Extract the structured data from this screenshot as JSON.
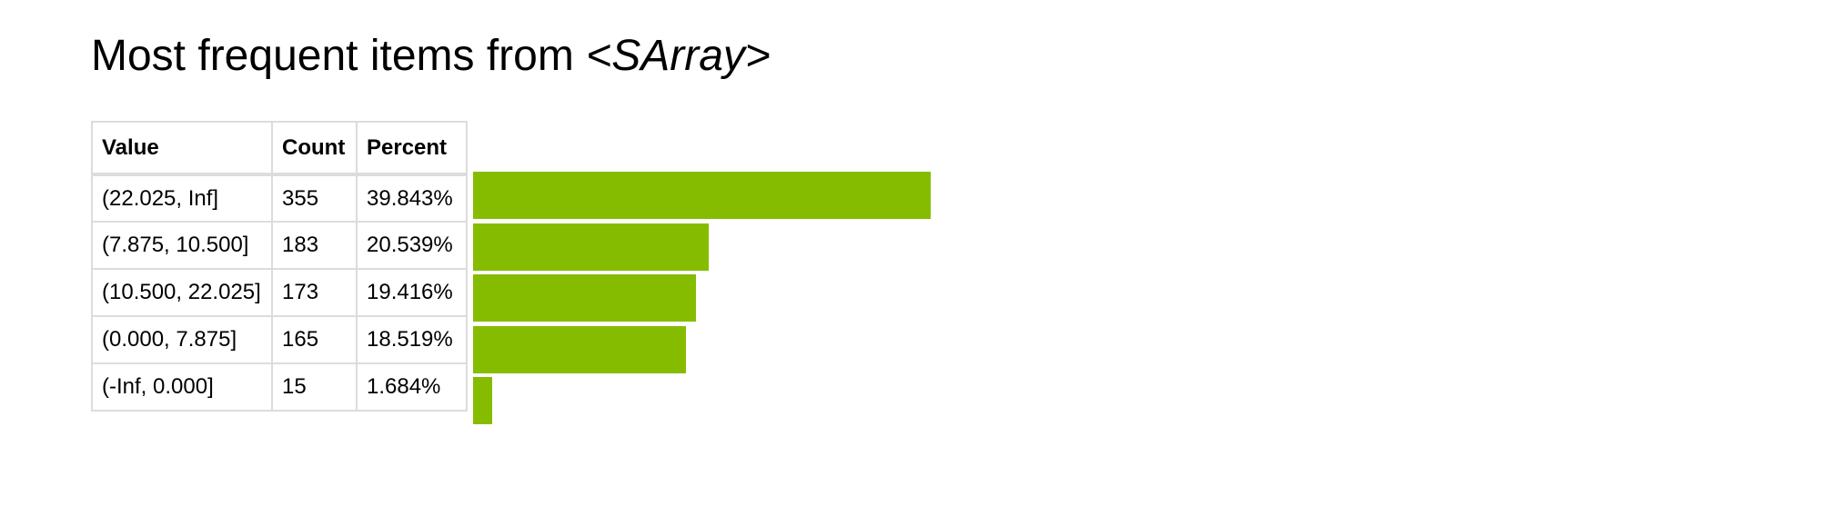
{
  "title": {
    "prefix": "Most frequent items from ",
    "object": "<SArray>"
  },
  "table": {
    "headers": [
      "Value",
      "Count",
      "Percent"
    ],
    "rows": [
      {
        "value": "(22.025, Inf]",
        "count": "355",
        "percent": "39.843%"
      },
      {
        "value": "(7.875, 10.500]",
        "count": "183",
        "percent": "20.539%"
      },
      {
        "value": "(10.500, 22.025]",
        "count": "173",
        "percent": "19.416%"
      },
      {
        "value": "(0.000, 7.875]",
        "count": "165",
        "percent": "18.519%"
      },
      {
        "value": "(-Inf, 0.000]",
        "count": "15",
        "percent": "1.684%"
      }
    ]
  },
  "chart_data": {
    "type": "bar",
    "orientation": "horizontal",
    "title": "Most frequent items from <SArray>",
    "categories": [
      "(22.025, Inf]",
      "(7.875, 10.500]",
      "(10.500, 22.025]",
      "(0.000, 7.875]",
      "(-Inf, 0.000]"
    ],
    "values": [
      355,
      183,
      173,
      165,
      15
    ],
    "percents": [
      39.843,
      20.539,
      19.416,
      18.519,
      1.684
    ],
    "bar_color": "#85bc00",
    "grid": false,
    "legend": "none"
  }
}
